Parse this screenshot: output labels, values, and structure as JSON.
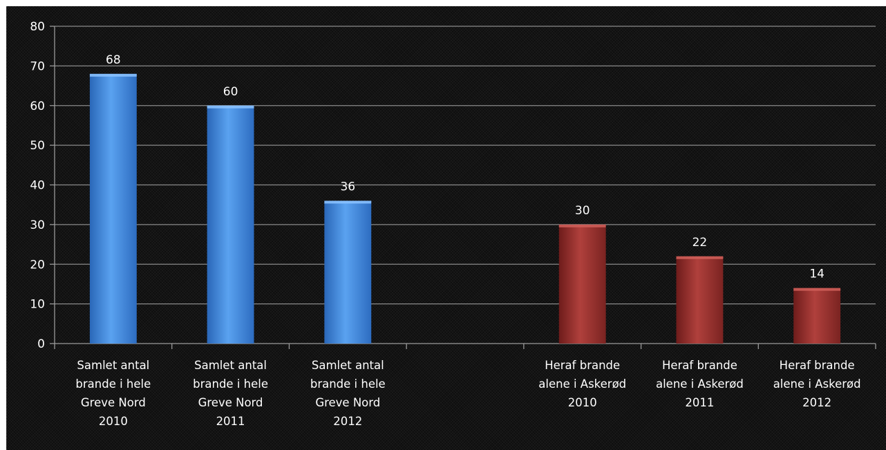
{
  "chart_data": {
    "type": "bar",
    "title": "",
    "xlabel": "",
    "ylabel": "",
    "ylim": [
      0,
      80
    ],
    "yticks": [
      0,
      10,
      20,
      30,
      40,
      50,
      60,
      70,
      80
    ],
    "grid": true,
    "legend": "none",
    "categories": [
      [
        "Samlet antal",
        "brande i hele",
        "Greve Nord",
        "2010"
      ],
      [
        "Samlet antal",
        "brande i hele",
        "Greve Nord",
        "2011"
      ],
      [
        "Samlet antal",
        "brande i hele",
        "Greve Nord",
        "2012"
      ],
      [],
      [
        "Heraf brande",
        "alene i Askerød",
        "2010"
      ],
      [
        "Heraf brande",
        "alene i Askerød",
        "2011"
      ],
      [
        "Heraf brande",
        "alene i Askerød",
        "2012"
      ]
    ],
    "values": [
      68,
      60,
      36,
      null,
      30,
      22,
      14
    ],
    "colors": [
      "#3a7fd5",
      "#3a7fd5",
      "#3a7fd5",
      null,
      "#8e2a28",
      "#8e2a28",
      "#8e2a28"
    ]
  }
}
